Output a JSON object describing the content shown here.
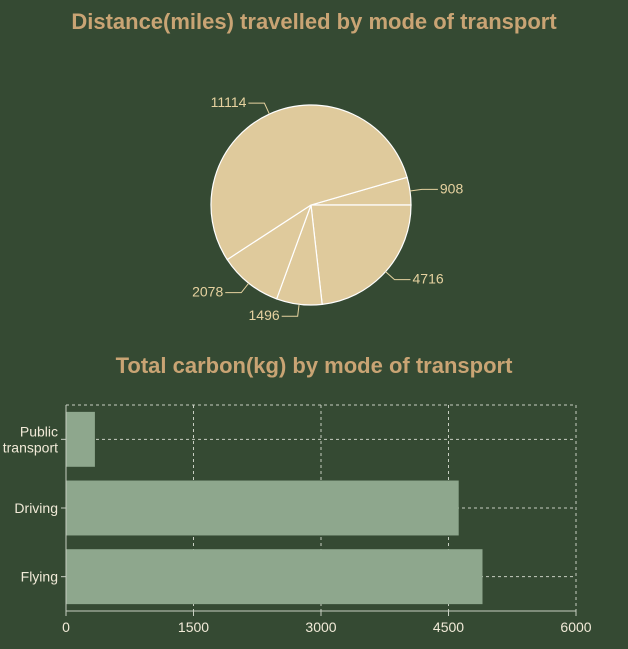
{
  "colors": {
    "background": "#354a33",
    "title": "#c9a474",
    "pie_fill": "#dfca9c",
    "pie_stroke": "#ffffff",
    "pie_label": "#e6d2a0",
    "bar_fill": "#8ea78d",
    "grid": "#c8cfc2",
    "axis_label": "#f1ead8"
  },
  "chart_data": [
    {
      "type": "pie",
      "title": "Distance(miles) travelled by mode of transport",
      "values": [
        908,
        4716,
        1496,
        2078,
        11114
      ],
      "labels": [
        "908",
        "4716",
        "1496",
        "2078",
        "11114"
      ]
    },
    {
      "type": "bar",
      "orientation": "horizontal",
      "title": "Total carbon(kg) by mode of transport",
      "categories": [
        "Public transport",
        "Driving",
        "Flying"
      ],
      "category_label_lines": [
        [
          "Public",
          "transport"
        ],
        [
          "Driving"
        ],
        [
          "Flying"
        ]
      ],
      "values": [
        340,
        4620,
        4900
      ],
      "xlim": [
        0,
        6000
      ],
      "xticks": [
        0,
        1500,
        3000,
        4500,
        6000
      ],
      "grid": true
    }
  ]
}
